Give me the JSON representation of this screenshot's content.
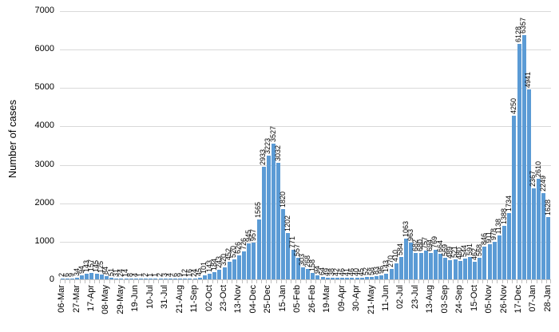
{
  "chart_data": {
    "type": "bar",
    "title": "",
    "xlabel": "",
    "ylabel": "Number of cases",
    "ylim": [
      0,
      7000
    ],
    "y_ticks": [
      0,
      1000,
      2000,
      3000,
      4000,
      5000,
      6000,
      7000
    ],
    "grid": "horizontal",
    "legend": "none",
    "bar_color": "#5b9bd5",
    "gridline_color": "#d9d9d9",
    "data_labels_shown": true,
    "data_label_rotation_deg": 90,
    "x_tick_label_rotation_deg": 90,
    "x_tick_every_n_bars": 3,
    "x_tick_labels": [
      "06-Mar",
      "27-Mar",
      "17-Apr",
      "08-May",
      "29-May",
      "19-Jun",
      "10-Jul",
      "31-Jul",
      "21-Aug",
      "11-Sep",
      "02-Oct",
      "23-Oct",
      "13-Nov",
      "04-Dec",
      "25-Dec",
      "15-Jan",
      "05-Feb",
      "26-Feb",
      "19-Mar",
      "09-Apr",
      "30-Apr",
      "21-May",
      "11-Jun",
      "02-Jul",
      "23-Jul",
      "13-Aug",
      "03-Sep",
      "24-Sep",
      "15-Oct",
      "05-Nov",
      "26-Nov",
      "17-Dec",
      "07-Jan",
      "28-Jan"
    ],
    "values": [
      2,
      6,
      9,
      34,
      94,
      143,
      157,
      145,
      125,
      84,
      51,
      31,
      24,
      14,
      8,
      4,
      1,
      2,
      1,
      1,
      2,
      3,
      4,
      6,
      9,
      12,
      16,
      24,
      45,
      101,
      143,
      184,
      243,
      320,
      452,
      520,
      626,
      726,
      945,
      957,
      1565,
      2933,
      3223,
      3527,
      3032,
      1820,
      1202,
      771,
      557,
      303,
      268,
      158,
      94,
      64,
      49,
      38,
      42,
      46,
      41,
      46,
      40,
      45,
      52,
      58,
      83,
      96,
      143,
      270,
      410,
      584,
      1063,
      963,
      682,
      680,
      757,
      694,
      769,
      664,
      569,
      489,
      521,
      480,
      544,
      591,
      462,
      568,
      846,
      911,
      978,
      1138,
      1388,
      1734,
      4250,
      6128,
      6357,
      4941,
      2367,
      2610,
      2249,
      1628
    ]
  }
}
